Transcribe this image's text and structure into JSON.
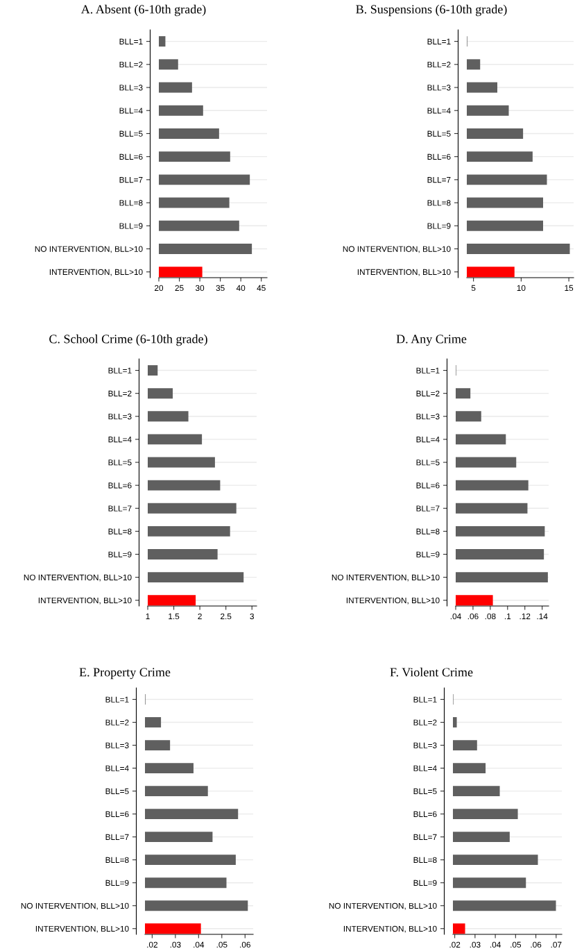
{
  "chart_data": [
    {
      "type": "bar",
      "orientation": "horizontal",
      "title": "A. Absent (6-10th grade)",
      "categories": [
        "BLL=1",
        "BLL=2",
        "BLL=3",
        "BLL=4",
        "BLL=5",
        "BLL=6",
        "BLL=7",
        "BLL=8",
        "BLL=9",
        "NO INTERVENTION, BLL>10",
        "INTERVENTION, BLL>10"
      ],
      "values": [
        21.6,
        24.7,
        28.1,
        30.8,
        34.7,
        37.4,
        42.2,
        37.2,
        39.6,
        42.7,
        30.6
      ],
      "colors": [
        "#5f5f5f",
        "#5f5f5f",
        "#5f5f5f",
        "#5f5f5f",
        "#5f5f5f",
        "#5f5f5f",
        "#5f5f5f",
        "#5f5f5f",
        "#5f5f5f",
        "#5f5f5f",
        "#ff0000"
      ],
      "xlim": [
        20,
        46.4
      ],
      "xticks": [
        20,
        25,
        30,
        35,
        40,
        45
      ],
      "grid": "y"
    },
    {
      "type": "bar",
      "orientation": "horizontal",
      "title": "B. Suspensions (6-10th grade)",
      "categories": [
        "BLL=1",
        "BLL=2",
        "BLL=3",
        "BLL=4",
        "BLL=5",
        "BLL=6",
        "BLL=7",
        "BLL=8",
        "BLL=9",
        "NO INTERVENTION, BLL>10",
        "INTERVENTION, BLL>10"
      ],
      "values": [
        4.35,
        5.7,
        7.5,
        8.7,
        10.2,
        11.2,
        12.7,
        12.3,
        12.3,
        15.1,
        9.3
      ],
      "colors": [
        "#5f5f5f",
        "#5f5f5f",
        "#5f5f5f",
        "#5f5f5f",
        "#5f5f5f",
        "#5f5f5f",
        "#5f5f5f",
        "#5f5f5f",
        "#5f5f5f",
        "#5f5f5f",
        "#ff0000"
      ],
      "xlim": [
        4.3,
        15.5
      ],
      "xticks": [
        5,
        10,
        15
      ],
      "grid": "y"
    },
    {
      "type": "bar",
      "orientation": "horizontal",
      "title": "C. School Crime (6-10th grade)",
      "categories": [
        "BLL=1",
        "BLL=2",
        "BLL=3",
        "BLL=4",
        "BLL=5",
        "BLL=6",
        "BLL=7",
        "BLL=8",
        "BLL=9",
        "NO INTERVENTION, BLL>10",
        "INTERVENTION, BLL>10"
      ],
      "values": [
        1.19,
        1.48,
        1.78,
        2.04,
        2.29,
        2.39,
        2.7,
        2.58,
        2.34,
        2.84,
        1.92
      ],
      "colors": [
        "#5f5f5f",
        "#5f5f5f",
        "#5f5f5f",
        "#5f5f5f",
        "#5f5f5f",
        "#5f5f5f",
        "#5f5f5f",
        "#5f5f5f",
        "#5f5f5f",
        "#5f5f5f",
        "#ff0000"
      ],
      "xlim": [
        1,
        3.09
      ],
      "xticks": [
        1,
        1.5,
        2,
        2.5,
        3
      ],
      "grid": "y"
    },
    {
      "type": "bar",
      "orientation": "horizontal",
      "title": "D. Any Crime",
      "categories": [
        "BLL=1",
        "BLL=2",
        "BLL=3",
        "BLL=4",
        "BLL=5",
        "BLL=6",
        "BLL=7",
        "BLL=8",
        "BLL=9",
        "NO INTERVENTION, BLL>10",
        "INTERVENTION, BLL>10"
      ],
      "values": [
        0.0405,
        0.057,
        0.0695,
        0.098,
        0.11,
        0.124,
        0.123,
        0.143,
        0.142,
        0.1466,
        0.083
      ],
      "colors": [
        "#5f5f5f",
        "#5f5f5f",
        "#5f5f5f",
        "#5f5f5f",
        "#5f5f5f",
        "#5f5f5f",
        "#5f5f5f",
        "#5f5f5f",
        "#5f5f5f",
        "#5f5f5f",
        "#ff0000"
      ],
      "xlim": [
        0.04,
        0.1475
      ],
      "xticks": [
        {
          "value": 0.04,
          "label": ".04"
        },
        {
          "value": 0.06,
          "label": ".06"
        },
        {
          "value": 0.08,
          "label": ".08"
        },
        {
          "value": 0.1,
          "label": ".1"
        },
        {
          "value": 0.12,
          "label": ".12"
        },
        {
          "value": 0.14,
          "label": ".14"
        }
      ],
      "grid": "y"
    },
    {
      "type": "bar",
      "orientation": "horizontal",
      "title": "E. Property Crime",
      "categories": [
        "BLL=1",
        "BLL=2",
        "BLL=3",
        "BLL=4",
        "BLL=5",
        "BLL=6",
        "BLL=7",
        "BLL=8",
        "BLL=9",
        "NO INTERVENTION, BLL>10",
        "INTERVENTION, BLL>10"
      ],
      "values": [
        0.0171,
        0.0238,
        0.0277,
        0.0378,
        0.044,
        0.057,
        0.046,
        0.056,
        0.052,
        0.0612,
        0.041
      ],
      "colors": [
        "#5f5f5f",
        "#5f5f5f",
        "#5f5f5f",
        "#5f5f5f",
        "#5f5f5f",
        "#5f5f5f",
        "#5f5f5f",
        "#5f5f5f",
        "#5f5f5f",
        "#5f5f5f",
        "#ff0000"
      ],
      "xlim": [
        0.0169,
        0.0635
      ],
      "xticks": [
        {
          "value": 0.02,
          "label": ".02"
        },
        {
          "value": 0.03,
          "label": ".03"
        },
        {
          "value": 0.04,
          "label": ".04"
        },
        {
          "value": 0.05,
          "label": ".05"
        },
        {
          "value": 0.06,
          "label": ".06"
        }
      ],
      "grid": "y"
    },
    {
      "type": "bar",
      "orientation": "horizontal",
      "title": "F. Violent Crime",
      "categories": [
        "BLL=1",
        "BLL=2",
        "BLL=3",
        "BLL=4",
        "BLL=5",
        "BLL=6",
        "BLL=7",
        "BLL=8",
        "BLL=9",
        "NO INTERVENTION, BLL>10",
        "INTERVENTION, BLL>10"
      ],
      "values": [
        0.0193,
        0.021,
        0.031,
        0.0352,
        0.0422,
        0.0511,
        0.0471,
        0.061,
        0.0551,
        0.0699,
        0.0251
      ],
      "colors": [
        "#5f5f5f",
        "#5f5f5f",
        "#5f5f5f",
        "#5f5f5f",
        "#5f5f5f",
        "#5f5f5f",
        "#5f5f5f",
        "#5f5f5f",
        "#5f5f5f",
        "#5f5f5f",
        "#ff0000"
      ],
      "xlim": [
        0.0191,
        0.0728
      ],
      "xticks": [
        {
          "value": 0.02,
          "label": ".02"
        },
        {
          "value": 0.03,
          "label": ".03"
        },
        {
          "value": 0.04,
          "label": ".04"
        },
        {
          "value": 0.05,
          "label": ".05"
        },
        {
          "value": 0.06,
          "label": ".06"
        },
        {
          "value": 0.07,
          "label": ".07"
        }
      ],
      "grid": "y"
    }
  ]
}
